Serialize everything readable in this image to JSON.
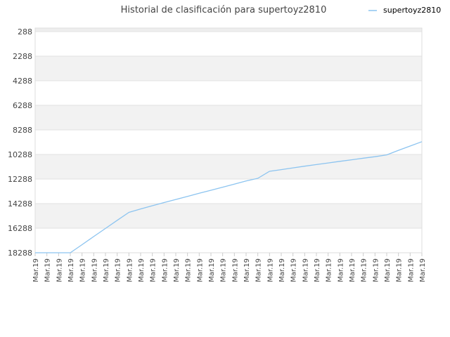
{
  "chart_data": {
    "type": "line",
    "title": "Historial de clasificación para supertoyz2810",
    "xlabel": "",
    "ylabel": "",
    "y_inverted": true,
    "ylim": [
      18288,
      288
    ],
    "yticks": [
      "288",
      "2288",
      "4288",
      "6288",
      "8288",
      "10288",
      "12288",
      "14288",
      "16288",
      "18288"
    ],
    "categories": [
      "Mar.19",
      "Mar.19",
      "Mar.19",
      "Mar.19",
      "Mar.19",
      "Mar.19",
      "Mar.19",
      "Mar.19",
      "Mar.19",
      "Mar.19",
      "Mar.19",
      "Mar.19",
      "Mar.19",
      "Mar.19",
      "Mar.19",
      "Mar.19",
      "Mar.19",
      "Mar.19",
      "Mar.19",
      "Mar.19",
      "Mar.19",
      "Mar.19",
      "Mar.19",
      "Mar.19",
      "Mar.19",
      "Mar.19",
      "Mar.19",
      "Mar.19",
      "Mar.19",
      "Mar.19",
      "Mar.19",
      "Mar.19",
      "Mar.19",
      "Mar.19"
    ],
    "series": [
      {
        "name": "supertoyz2810",
        "color": "#8cc4f0",
        "values": [
          18288,
          18288,
          18288,
          18288,
          17630,
          16970,
          16310,
          15650,
          15000,
          14720,
          14460,
          14200,
          13950,
          13700,
          13450,
          13200,
          12950,
          12700,
          12450,
          12230,
          11660,
          11520,
          11380,
          11240,
          11110,
          10980,
          10850,
          10720,
          10590,
          10470,
          10320,
          9950,
          9600,
          9250
        ],
        "x": [
          0,
          1,
          2,
          3,
          4,
          5,
          6,
          7,
          8,
          9,
          10,
          11,
          12,
          13,
          14,
          15,
          16,
          17,
          18,
          19,
          20,
          21,
          22,
          23,
          24,
          25,
          26,
          27,
          28,
          29,
          30,
          31,
          32,
          33
        ]
      }
    ],
    "grid": true,
    "legend_position": "top-right",
    "band_colors": [
      "#ffffff",
      "#f2f2f2"
    ]
  }
}
